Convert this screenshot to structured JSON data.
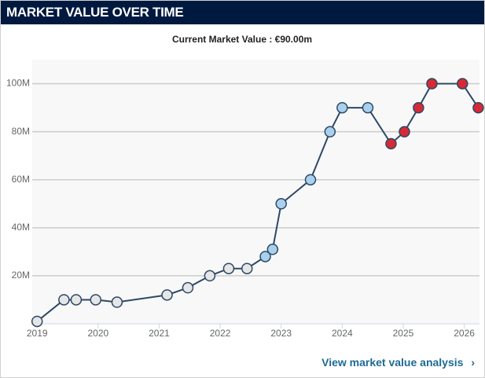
{
  "header": {
    "title": "MARKET VALUE OVER TIME"
  },
  "chart_data": {
    "type": "line",
    "subtitle": "Current Market Value : €90.00m",
    "x": [
      2019.0,
      2019.44,
      2019.64,
      2019.96,
      2020.31,
      2021.13,
      2021.47,
      2021.83,
      2022.14,
      2022.44,
      2022.74,
      2022.86,
      2023.0,
      2023.48,
      2023.8,
      2024.0,
      2024.42,
      2024.8,
      2025.02,
      2025.25,
      2025.47,
      2025.97,
      2026.23
    ],
    "values": [
      1,
      10,
      10,
      10,
      9,
      12,
      15,
      20,
      23,
      23,
      28,
      31,
      50,
      60,
      80,
      90,
      90,
      75,
      80,
      90,
      100,
      100,
      90
    ],
    "color": "#2d4866",
    "point_colors": [
      "#e6e6e6",
      "#e6e6e6",
      "#e6e6e6",
      "#e6e6e6",
      "#e6e6e6",
      "#e6e6e6",
      "#e6e6e6",
      "#e6e6e6",
      "#e6e6e6",
      "#e6e6e6",
      "#a9d1ee",
      "#a9d1ee",
      "#a9d1ee",
      "#a9d1ee",
      "#a9d1ee",
      "#a9d1ee",
      "#a9d1ee",
      "#d62a36",
      "#d62a36",
      "#d62a36",
      "#d62a36",
      "#d62a36",
      "#d62a36"
    ],
    "xlim": [
      2018.92,
      2026.25
    ],
    "xticks": [
      2019,
      2020,
      2021,
      2022,
      2023,
      2024,
      2025,
      2026
    ],
    "ylim": [
      0,
      110
    ],
    "yticks": [
      {
        "value": 20,
        "label": "20M"
      },
      {
        "value": 40,
        "label": "40M"
      },
      {
        "value": 60,
        "label": "60M"
      },
      {
        "value": 80,
        "label": "80M"
      },
      {
        "value": 100,
        "label": "100M"
      }
    ],
    "grid": true
  },
  "link": {
    "text": "View market value analysis"
  }
}
